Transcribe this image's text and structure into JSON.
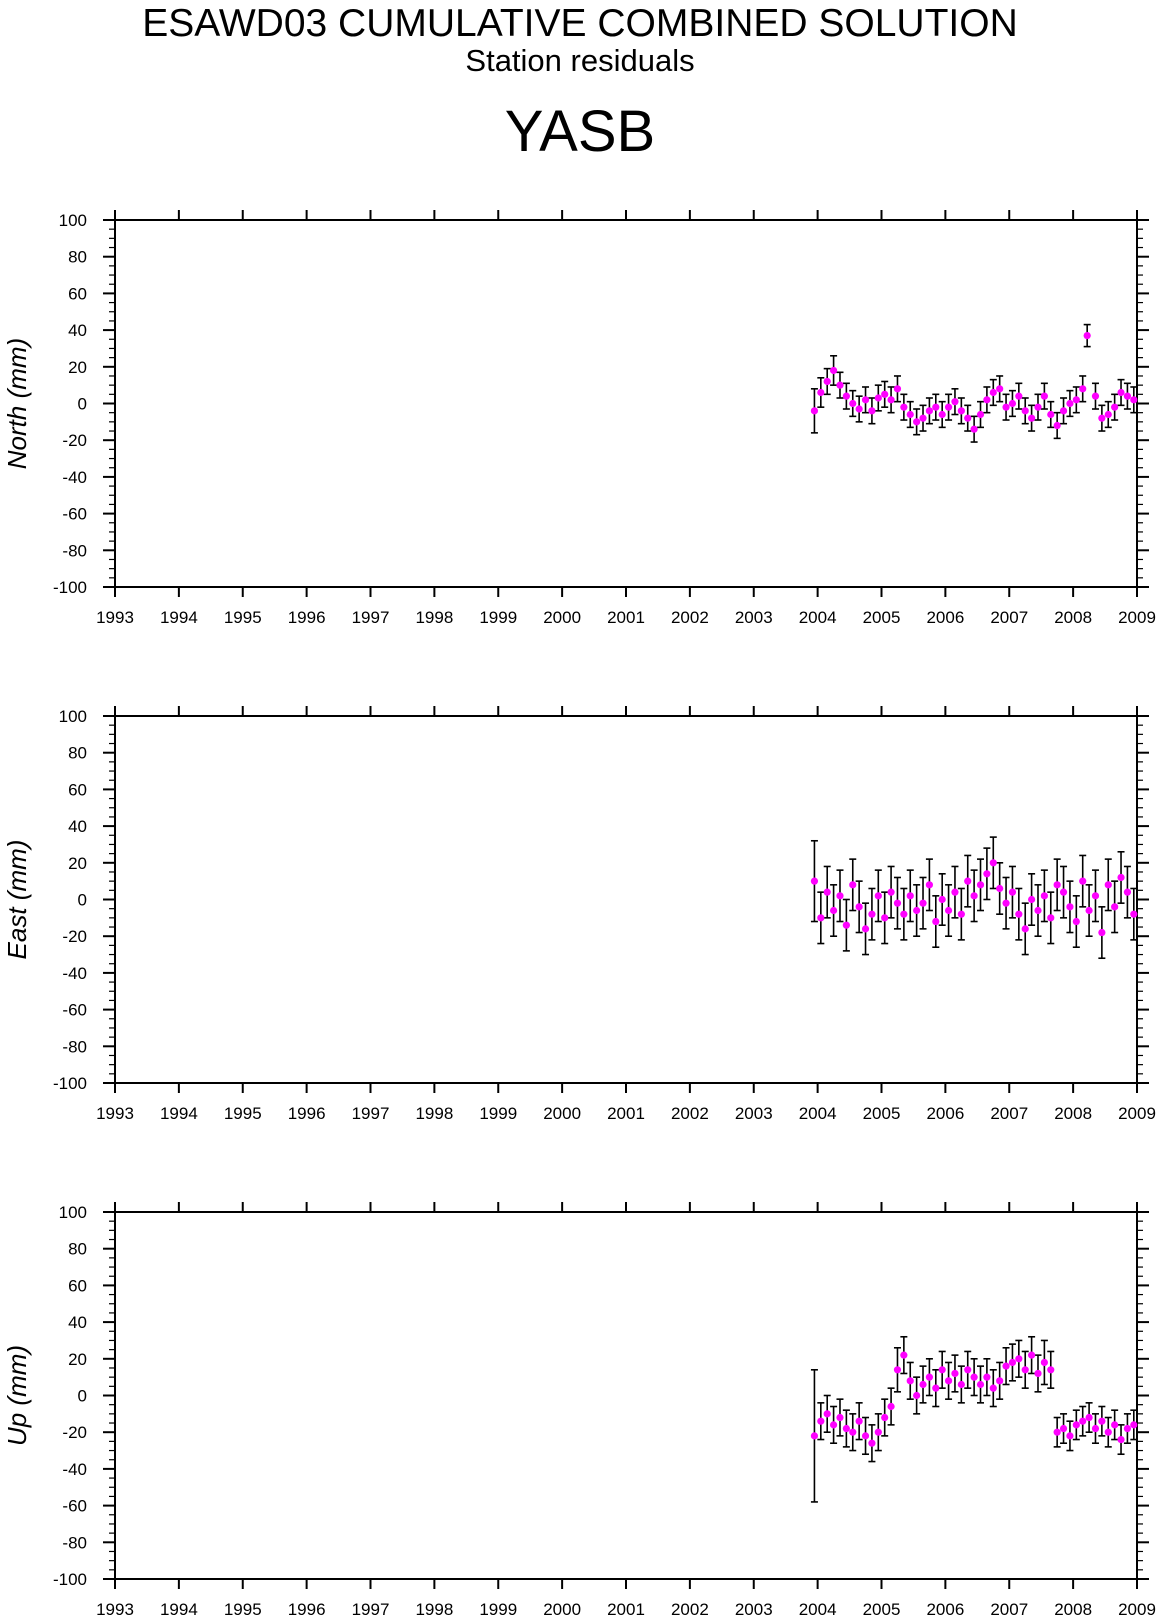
{
  "header": {
    "title": "ESAWD03 CUMULATIVE COMBINED SOLUTION",
    "subtitle": "Station residuals",
    "station": "YASB"
  },
  "chart_data": [
    {
      "type": "scatter",
      "component": "north",
      "ylabel": "North (mm)",
      "xlim": [
        1993,
        2009
      ],
      "ylim": [
        -100,
        100
      ],
      "x_ticks": [
        "1993",
        "1994",
        "1995",
        "1996",
        "1997",
        "1998",
        "1999",
        "2000",
        "2001",
        "2002",
        "2003",
        "2004",
        "2005",
        "2006",
        "2007",
        "2008",
        "2009"
      ],
      "y_ticks": [
        "100",
        "80",
        "60",
        "40",
        "20",
        "0",
        "-20",
        "-40",
        "-60",
        "-80",
        "-100"
      ],
      "marker_color": "#ff00ff",
      "errorbar_color": "#000000",
      "series": [
        {
          "x": [
            2003.95,
            2004.05,
            2004.15,
            2004.25,
            2004.35,
            2004.45,
            2004.55,
            2004.65,
            2004.75,
            2004.85,
            2004.95,
            2005.05,
            2005.15,
            2005.25,
            2005.35,
            2005.45,
            2005.55,
            2005.65,
            2005.75,
            2005.85,
            2005.95,
            2006.05,
            2006.15,
            2006.25,
            2006.35,
            2006.45,
            2006.55,
            2006.65,
            2006.75,
            2006.85,
            2006.95,
            2007.05,
            2007.15,
            2007.25,
            2007.35,
            2007.45,
            2007.55,
            2007.65,
            2007.75,
            2007.85,
            2007.95,
            2008.05,
            2008.15,
            2008.22,
            2008.35,
            2008.45,
            2008.55,
            2008.65,
            2008.75,
            2008.85,
            2008.95
          ],
          "y": [
            -4,
            6,
            12,
            18,
            10,
            4,
            0,
            -3,
            2,
            -4,
            3,
            5,
            2,
            8,
            -2,
            -6,
            -10,
            -8,
            -4,
            -2,
            -6,
            -2,
            1,
            -4,
            -8,
            -14,
            -6,
            2,
            6,
            8,
            -2,
            0,
            4,
            -4,
            -8,
            -2,
            4,
            -6,
            -12,
            -4,
            0,
            2,
            8,
            37,
            4,
            -8,
            -6,
            -2,
            6,
            4,
            2
          ],
          "err": [
            12,
            8,
            7,
            8,
            7,
            7,
            7,
            7,
            7,
            7,
            7,
            7,
            7,
            7,
            7,
            7,
            7,
            7,
            7,
            7,
            7,
            7,
            7,
            7,
            7,
            7,
            7,
            7,
            7,
            7,
            7,
            7,
            7,
            7,
            7,
            7,
            7,
            7,
            7,
            7,
            7,
            7,
            7,
            6,
            7,
            7,
            7,
            7,
            7,
            7,
            7
          ]
        }
      ]
    },
    {
      "type": "scatter",
      "component": "east",
      "ylabel": "East (mm)",
      "xlim": [
        1993,
        2009
      ],
      "ylim": [
        -100,
        100
      ],
      "x_ticks": [
        "1993",
        "1994",
        "1995",
        "1996",
        "1997",
        "1998",
        "1999",
        "2000",
        "2001",
        "2002",
        "2003",
        "2004",
        "2005",
        "2006",
        "2007",
        "2008",
        "2009"
      ],
      "y_ticks": [
        "100",
        "80",
        "60",
        "40",
        "20",
        "0",
        "-20",
        "-40",
        "-60",
        "-80",
        "-100"
      ],
      "marker_color": "#ff00ff",
      "errorbar_color": "#000000",
      "series": [
        {
          "x": [
            2003.95,
            2004.05,
            2004.15,
            2004.25,
            2004.35,
            2004.45,
            2004.55,
            2004.65,
            2004.75,
            2004.85,
            2004.95,
            2005.05,
            2005.15,
            2005.25,
            2005.35,
            2005.45,
            2005.55,
            2005.65,
            2005.75,
            2005.85,
            2005.95,
            2006.05,
            2006.15,
            2006.25,
            2006.35,
            2006.45,
            2006.55,
            2006.65,
            2006.75,
            2006.85,
            2006.95,
            2007.05,
            2007.15,
            2007.25,
            2007.35,
            2007.45,
            2007.55,
            2007.65,
            2007.75,
            2007.85,
            2007.95,
            2008.05,
            2008.15,
            2008.25,
            2008.35,
            2008.45,
            2008.55,
            2008.65,
            2008.75,
            2008.85,
            2008.95
          ],
          "y": [
            10,
            -10,
            4,
            -6,
            2,
            -14,
            8,
            -4,
            -16,
            -8,
            2,
            -10,
            4,
            -2,
            -8,
            2,
            -6,
            -2,
            8,
            -12,
            0,
            -6,
            4,
            -8,
            10,
            2,
            8,
            14,
            20,
            6,
            -2,
            4,
            -8,
            -16,
            0,
            -6,
            2,
            -10,
            8,
            4,
            -4,
            -12,
            10,
            -6,
            2,
            -18,
            8,
            -4,
            12,
            4,
            -8
          ],
          "err": [
            22,
            14,
            14,
            14,
            14,
            14,
            14,
            14,
            14,
            14,
            14,
            14,
            14,
            14,
            14,
            14,
            14,
            14,
            14,
            14,
            14,
            14,
            14,
            14,
            14,
            14,
            14,
            14,
            14,
            14,
            14,
            14,
            14,
            14,
            14,
            14,
            14,
            14,
            14,
            14,
            14,
            14,
            14,
            14,
            14,
            14,
            14,
            14,
            14,
            14,
            14
          ]
        }
      ]
    },
    {
      "type": "scatter",
      "component": "up",
      "ylabel": "Up (mm)",
      "xlim": [
        1993,
        2009
      ],
      "ylim": [
        -100,
        100
      ],
      "x_ticks": [
        "1993",
        "1994",
        "1995",
        "1996",
        "1997",
        "1998",
        "1999",
        "2000",
        "2001",
        "2002",
        "2003",
        "2004",
        "2005",
        "2006",
        "2007",
        "2008",
        "2009"
      ],
      "y_ticks": [
        "100",
        "80",
        "60",
        "40",
        "20",
        "0",
        "-20",
        "-40",
        "-60",
        "-80",
        "-100"
      ],
      "marker_color": "#ff00ff",
      "errorbar_color": "#000000",
      "series": [
        {
          "x": [
            2003.95,
            2004.05,
            2004.15,
            2004.25,
            2004.35,
            2004.45,
            2004.55,
            2004.65,
            2004.75,
            2004.85,
            2004.95,
            2005.05,
            2005.15,
            2005.25,
            2005.35,
            2005.45,
            2005.55,
            2005.65,
            2005.75,
            2005.85,
            2005.95,
            2006.05,
            2006.15,
            2006.25,
            2006.35,
            2006.45,
            2006.55,
            2006.65,
            2006.75,
            2006.85,
            2006.95,
            2007.05,
            2007.15,
            2007.25,
            2007.35,
            2007.45,
            2007.55,
            2007.65,
            2007.75,
            2007.85,
            2007.95,
            2008.05,
            2008.15,
            2008.25,
            2008.35,
            2008.45,
            2008.55,
            2008.65,
            2008.75,
            2008.85,
            2008.95
          ],
          "y": [
            -22,
            -14,
            -10,
            -16,
            -12,
            -18,
            -20,
            -14,
            -22,
            -26,
            -20,
            -12,
            -6,
            14,
            22,
            8,
            0,
            6,
            10,
            4,
            14,
            8,
            12,
            6,
            14,
            10,
            6,
            10,
            4,
            8,
            16,
            18,
            20,
            14,
            22,
            12,
            18,
            14,
            -20,
            -18,
            -22,
            -16,
            -14,
            -12,
            -18,
            -14,
            -20,
            -16,
            -24,
            -18,
            -16
          ],
          "err": [
            36,
            10,
            10,
            10,
            10,
            10,
            10,
            10,
            10,
            10,
            10,
            10,
            10,
            12,
            10,
            10,
            10,
            10,
            10,
            10,
            10,
            10,
            10,
            10,
            10,
            10,
            10,
            10,
            10,
            10,
            10,
            10,
            10,
            10,
            10,
            10,
            12,
            10,
            8,
            8,
            8,
            8,
            8,
            8,
            8,
            8,
            8,
            8,
            8,
            8,
            8
          ]
        }
      ]
    }
  ]
}
